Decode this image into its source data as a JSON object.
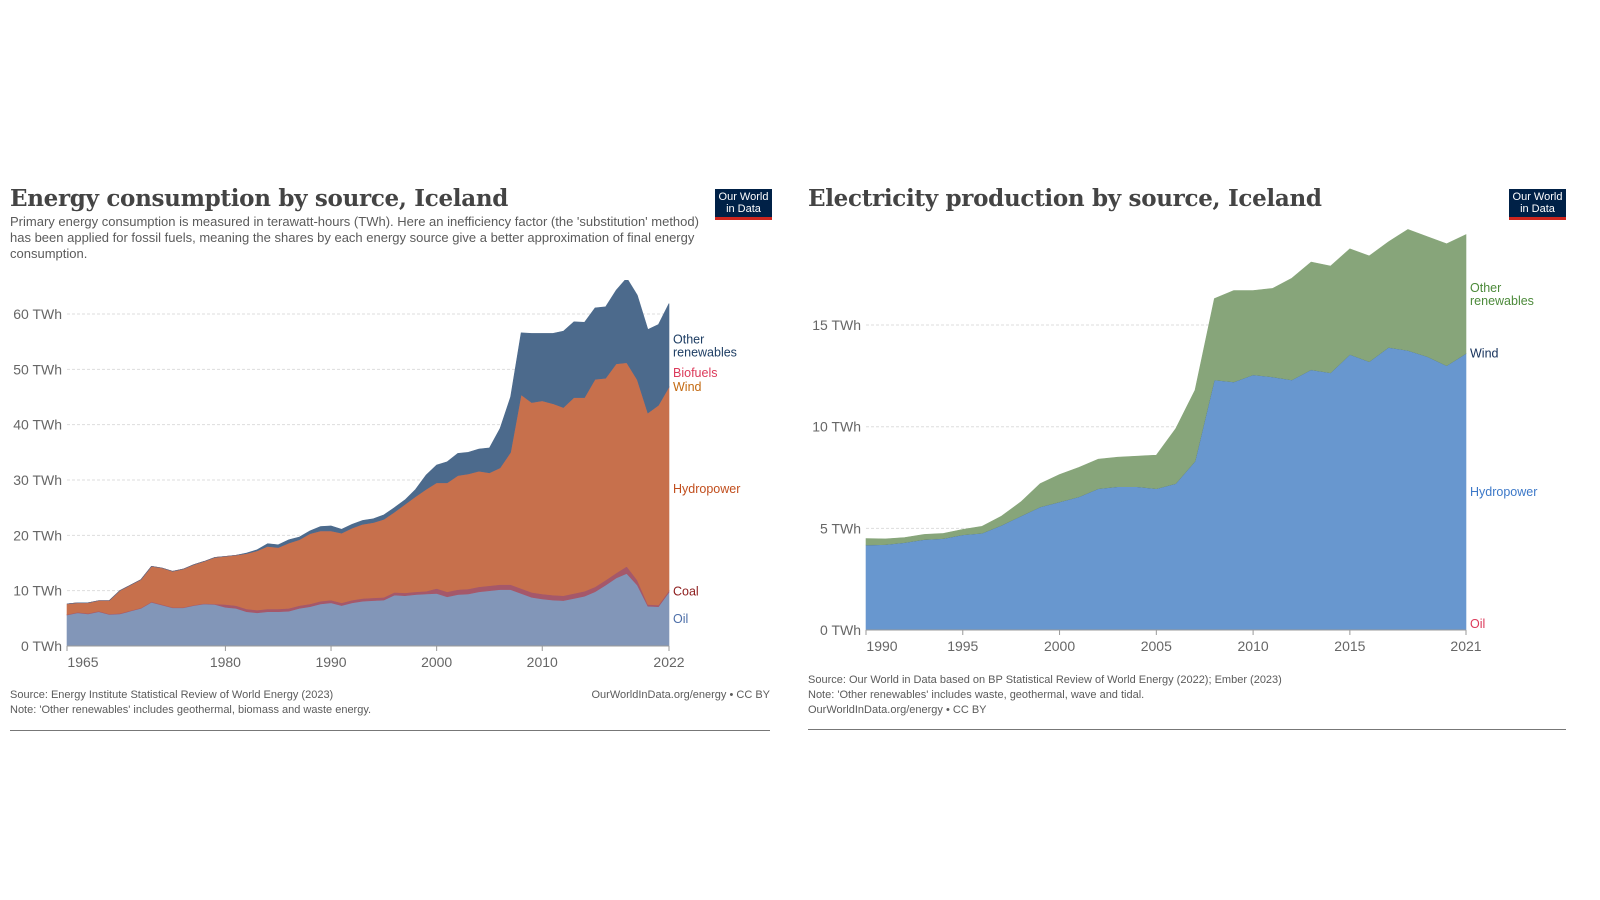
{
  "left": {
    "title": "Energy consumption by source, Iceland",
    "subtitle": "Primary energy consumption is measured in terawatt-hours (TWh). Here an inefficiency factor (the 'substitution' method) has been applied for fossil fuels, meaning the shares by each energy source give a better approximation of final energy consumption.",
    "logo": "Our World in Data",
    "source": "Source: Energy Institute Statistical Review of World Energy (2023)",
    "note": "Note: 'Other renewables' includes geothermal, biomass and waste energy.",
    "credit": "OurWorldInData.org/energy • CC BY"
  },
  "right": {
    "title": "Electricity production by source, Iceland",
    "logo": "Our World in Data",
    "source": "Source: Our World in Data based on BP Statistical Review of World Energy (2022); Ember (2023)",
    "note": "Note: 'Other renewables' includes waste, geothermal, wave and tidal.",
    "credit": "OurWorldInData.org/energy • CC BY"
  },
  "chart_data": [
    {
      "type": "area",
      "stacked": true,
      "title": "Energy consumption by source, Iceland",
      "x_start": 1965,
      "x_end": 2022,
      "xticks": [
        "1965",
        "1980",
        "1990",
        "2000",
        "2010",
        "2022"
      ],
      "yticks": [
        "0 TWh",
        "10 TWh",
        "20 TWh",
        "30 TWh",
        "40 TWh",
        "50 TWh",
        "60 TWh"
      ],
      "ylim": [
        0,
        67
      ],
      "grid": true,
      "legend": "right (inline labels)",
      "series": [
        {
          "name": "Oil",
          "color": "#8296b8",
          "label_color": "#4c6ea8",
          "values": [
            5.6,
            6.0,
            5.8,
            6.2,
            5.7,
            5.8,
            6.3,
            6.8,
            7.9,
            7.4,
            6.9,
            6.9,
            7.3,
            7.6,
            7.5,
            7.0,
            6.8,
            6.2,
            6.0,
            6.2,
            6.2,
            6.3,
            6.8,
            7.1,
            7.6,
            7.8,
            7.3,
            7.8,
            8.1,
            8.2,
            8.3,
            9.2,
            9.1,
            9.3,
            9.4,
            9.5,
            8.9,
            9.3,
            9.4,
            9.8,
            10.0,
            10.2,
            10.2,
            9.5,
            8.8,
            8.5,
            8.3,
            8.2,
            8.6,
            9.0,
            9.8,
            11.0,
            12.3,
            13.1,
            11.0,
            7.2,
            7.1,
            9.7
          ]
        },
        {
          "name": "Coal",
          "color": "#a5586a",
          "label_color": "#8c1b1b",
          "values": [
            0.1,
            0.1,
            0.1,
            0.1,
            0.1,
            0.1,
            0.1,
            0.1,
            0.1,
            0.1,
            0.1,
            0.1,
            0.1,
            0.1,
            0.1,
            0.5,
            0.5,
            0.5,
            0.5,
            0.5,
            0.5,
            0.5,
            0.5,
            0.5,
            0.5,
            0.5,
            0.5,
            0.5,
            0.5,
            0.5,
            0.5,
            0.5,
            0.5,
            0.5,
            0.5,
            0.9,
            0.9,
            0.9,
            0.9,
            0.9,
            0.9,
            0.9,
            0.9,
            0.9,
            0.9,
            0.9,
            0.9,
            0.9,
            0.9,
            0.9,
            0.9,
            0.9,
            0.9,
            1.3,
            0.9,
            0.3,
            0.3,
            0.3
          ]
        },
        {
          "name": "Hydropower",
          "color": "#c7704c",
          "label_color": "#c14e1d",
          "values": [
            1.9,
            1.7,
            1.9,
            1.9,
            2.4,
            4.1,
            4.6,
            5.1,
            6.4,
            6.6,
            6.5,
            6.9,
            7.3,
            7.6,
            8.4,
            8.7,
            9.1,
            10.0,
            10.7,
            11.3,
            11.1,
            11.8,
            11.9,
            12.7,
            12.7,
            12.5,
            12.6,
            13.0,
            13.4,
            13.6,
            14.1,
            14.5,
            16.0,
            17.2,
            18.4,
            19.1,
            19.7,
            20.6,
            20.8,
            20.9,
            20.4,
            21.1,
            23.9,
            35.0,
            34.3,
            34.9,
            34.6,
            34.0,
            35.4,
            35.0,
            37.5,
            36.5,
            37.8,
            36.8,
            36.2,
            34.6,
            36.1,
            36.8
          ]
        },
        {
          "name": "Wind",
          "color": "#c7823c",
          "label_color": "#c36a12",
          "values": [
            0,
            0,
            0,
            0,
            0,
            0,
            0,
            0,
            0,
            0,
            0,
            0,
            0,
            0,
            0,
            0,
            0,
            0,
            0,
            0,
            0,
            0,
            0,
            0,
            0,
            0,
            0,
            0,
            0,
            0,
            0,
            0,
            0,
            0,
            0,
            0,
            0,
            0,
            0,
            0,
            0,
            0,
            0,
            0,
            0,
            0,
            0,
            0,
            0,
            0,
            0,
            0,
            0,
            0,
            0,
            0,
            0,
            0
          ]
        },
        {
          "name": "Biofuels",
          "color": "#d66a7a",
          "label_color": "#dc3a5a",
          "values": [
            0,
            0,
            0,
            0,
            0,
            0,
            0,
            0,
            0,
            0,
            0,
            0,
            0,
            0,
            0,
            0,
            0,
            0,
            0,
            0,
            0,
            0,
            0,
            0,
            0,
            0,
            0,
            0,
            0,
            0,
            0,
            0,
            0,
            0,
            0,
            0,
            0,
            0,
            0,
            0,
            0,
            0,
            0,
            0,
            0,
            0,
            0,
            0,
            0,
            0,
            0,
            0,
            0,
            0,
            0,
            0,
            0,
            0
          ]
        },
        {
          "name": "Other renewables",
          "color": "#4c6a8c",
          "label_color": "#1d3d63",
          "values": [
            0,
            0,
            0,
            0,
            0,
            0,
            0,
            0,
            0,
            0,
            0,
            0,
            0,
            0,
            0,
            0,
            0,
            0.1,
            0.2,
            0.5,
            0.5,
            0.6,
            0.5,
            0.5,
            0.8,
            0.9,
            0.7,
            0.7,
            0.7,
            0.7,
            0.8,
            0.8,
            0.8,
            1.3,
            2.6,
            3.2,
            3.8,
            4.0,
            3.9,
            4.0,
            4.5,
            7.1,
            10.0,
            11.2,
            12.5,
            12.2,
            12.7,
            13.8,
            13.7,
            13.6,
            12.9,
            12.9,
            13.3,
            15.3,
            15.3,
            15.1,
            14.6,
            15.1
          ]
        }
      ]
    },
    {
      "type": "area",
      "stacked": true,
      "title": "Electricity production by source, Iceland",
      "x_start": 1990,
      "x_end": 2021,
      "xticks": [
        "1990",
        "1995",
        "2000",
        "2005",
        "2010",
        "2015",
        "2021"
      ],
      "yticks": [
        "0 TWh",
        "5 TWh",
        "10 TWh",
        "15 TWh"
      ],
      "ylim": [
        0,
        20
      ],
      "grid": true,
      "legend": "right (inline labels)",
      "series": [
        {
          "name": "Oil",
          "color": "#d73c50",
          "label_color": "#dc3a5a",
          "values": [
            0,
            0,
            0,
            0,
            0,
            0,
            0,
            0,
            0,
            0,
            0,
            0,
            0,
            0,
            0,
            0,
            0,
            0,
            0,
            0,
            0,
            0,
            0,
            0,
            0,
            0,
            0,
            0,
            0,
            0,
            0,
            0
          ]
        },
        {
          "name": "Hydropower",
          "color": "#6897cf",
          "label_color": "#3c78c8",
          "values": [
            4.18,
            4.2,
            4.3,
            4.45,
            4.5,
            4.68,
            4.76,
            5.15,
            5.6,
            6.05,
            6.3,
            6.55,
            6.95,
            7.05,
            7.05,
            6.95,
            7.2,
            8.3,
            12.3,
            12.2,
            12.55,
            12.45,
            12.3,
            12.8,
            12.65,
            13.55,
            13.2,
            13.9,
            13.75,
            13.45,
            13.0,
            13.6
          ]
        },
        {
          "name": "Wind",
          "color": "#1d3d63",
          "label_color": "#14305a",
          "values": [
            0,
            0,
            0,
            0,
            0,
            0,
            0,
            0,
            0,
            0,
            0,
            0,
            0,
            0,
            0,
            0,
            0,
            0,
            0,
            0,
            0,
            0,
            0,
            0,
            0,
            0,
            0,
            0,
            0,
            0,
            0,
            0
          ]
        },
        {
          "name": "Other renewables",
          "color": "#87a57a",
          "label_color": "#4c8a3a",
          "values": [
            0.32,
            0.28,
            0.25,
            0.25,
            0.25,
            0.27,
            0.34,
            0.45,
            0.7,
            1.15,
            1.35,
            1.45,
            1.45,
            1.45,
            1.5,
            1.65,
            2.7,
            3.5,
            4.0,
            4.5,
            4.15,
            4.35,
            5.0,
            5.3,
            5.25,
            5.2,
            5.2,
            5.2,
            5.95,
            5.9,
            6.0,
            5.85
          ]
        }
      ]
    }
  ]
}
